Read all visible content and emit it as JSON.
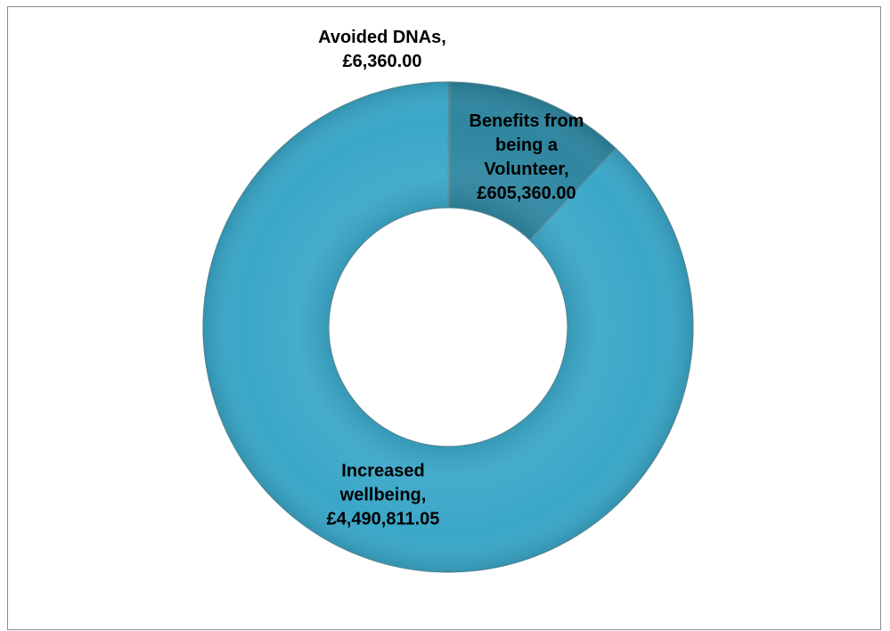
{
  "chart_data": {
    "type": "pie",
    "hole": true,
    "title": "",
    "legend": "none",
    "labels_shown": "category name and value",
    "categories": [
      "Avoided DNAs",
      "Benefits from being a Volunteer",
      "Increased wellbeing"
    ],
    "values": [
      6360.0,
      605360.0,
      4490811.05
    ],
    "label_text": [
      [
        "Avoided DNAs,",
        "£6,360.00"
      ],
      [
        "Benefits from",
        "being a",
        "Volunteer,",
        "£605,360.00"
      ],
      [
        "Increased",
        "wellbeing,",
        "£4,490,811.05"
      ]
    ],
    "colors": [
      "#2e86a0",
      "#2e86a0",
      "#3aa7c8"
    ]
  }
}
